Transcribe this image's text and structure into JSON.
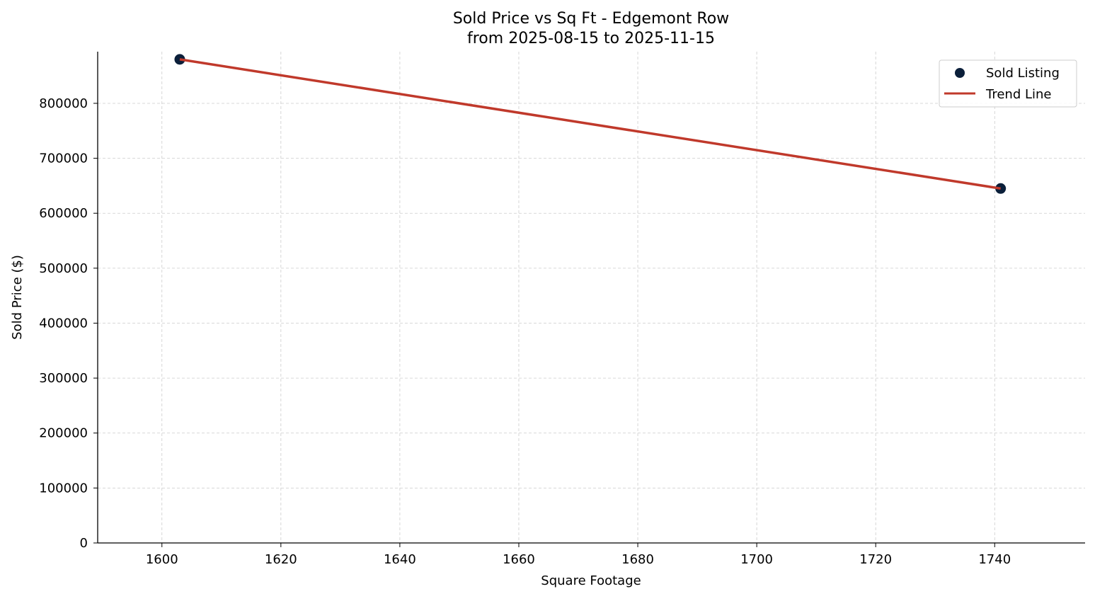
{
  "chart_data": {
    "type": "scatter",
    "title": "Sold Price vs Sq Ft - Edgemont Row",
    "subtitle": "from 2025-08-15 to 2025-11-15",
    "xlabel": "Square Footage",
    "ylabel": "Sold Price ($)",
    "xlim": [
      1589.2,
      1755.2
    ],
    "ylim": [
      0,
      894000
    ],
    "xticks": [
      1600,
      1620,
      1640,
      1660,
      1680,
      1700,
      1720,
      1740
    ],
    "yticks": [
      0,
      100000,
      200000,
      300000,
      400000,
      500000,
      600000,
      700000,
      800000
    ],
    "grid": true,
    "legend_position": "top-right",
    "series": [
      {
        "name": "Sold Listing",
        "kind": "scatter",
        "color": "#0b1f3a",
        "points": [
          {
            "x": 1603,
            "y": 880000
          },
          {
            "x": 1741,
            "y": 645000
          }
        ]
      },
      {
        "name": "Trend Line",
        "kind": "line",
        "color": "#c0392b",
        "points": [
          {
            "x": 1603,
            "y": 880000
          },
          {
            "x": 1741,
            "y": 645000
          }
        ]
      }
    ]
  }
}
